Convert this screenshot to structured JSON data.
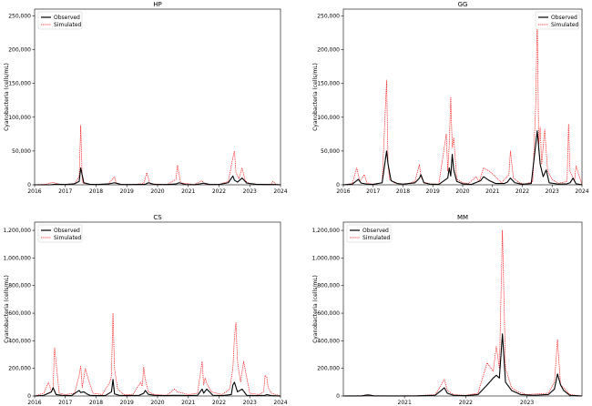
{
  "chart_data": [
    {
      "type": "line",
      "title": "HP",
      "ylabel": "Cyanobacteria (cells/mL)",
      "xlabel": "",
      "xlim": [
        2016.0,
        2024.0
      ],
      "ylim": [
        0,
        260000
      ],
      "xticks": [
        2016,
        2017,
        2018,
        2019,
        2020,
        2021,
        2022,
        2023,
        2024
      ],
      "xtick_labels": [
        "2016",
        "2017",
        "2018",
        "2019",
        "2020",
        "2021",
        "2022",
        "2023",
        "2024"
      ],
      "yticks": [
        0,
        50000,
        100000,
        150000,
        200000,
        250000
      ],
      "ytick_labels": [
        "0",
        "50,000",
        "100,000",
        "150,000",
        "200,000",
        "250,000"
      ],
      "legend": "top-left",
      "series": [
        {
          "name": "Observed",
          "color": "#000000",
          "style": "solid",
          "x": [
            2016.0,
            2016.5,
            2016.7,
            2017.0,
            2017.3,
            2017.45,
            2017.5,
            2017.6,
            2017.8,
            2018.0,
            2018.4,
            2018.6,
            2018.8,
            2019.2,
            2019.6,
            2019.7,
            2019.9,
            2020.3,
            2020.6,
            2020.7,
            2020.9,
            2021.2,
            2021.4,
            2021.5,
            2021.7,
            2022.0,
            2022.3,
            2022.45,
            2022.5,
            2022.6,
            2022.75,
            2022.9,
            2023.2,
            2023.6,
            2023.8,
            2024.0
          ],
          "y": [
            0,
            0,
            1000,
            500,
            1500,
            5000,
            25000,
            3000,
            800,
            400,
            1200,
            3000,
            600,
            400,
            800,
            3000,
            500,
            400,
            1200,
            3000,
            500,
            300,
            1500,
            2500,
            400,
            500,
            3000,
            13000,
            7000,
            4000,
            10000,
            2500,
            800,
            400,
            500,
            0
          ]
        },
        {
          "name": "Simulated",
          "color": "#ff0000",
          "style": "dotted",
          "x": [
            2016.0,
            2016.4,
            2016.6,
            2016.7,
            2016.8,
            2017.0,
            2017.3,
            2017.45,
            2017.5,
            2017.55,
            2017.6,
            2017.8,
            2018.0,
            2018.4,
            2018.6,
            2018.65,
            2018.8,
            2019.2,
            2019.55,
            2019.65,
            2019.75,
            2020.3,
            2020.6,
            2020.65,
            2020.75,
            2021.2,
            2021.45,
            2021.5,
            2021.6,
            2022.0,
            2022.3,
            2022.45,
            2022.5,
            2022.55,
            2022.65,
            2022.75,
            2022.85,
            2023.0,
            2023.3,
            2023.7,
            2023.75,
            2023.85,
            2024.0
          ],
          "y": [
            0,
            1000,
            4000,
            2000,
            800,
            500,
            2000,
            12000,
            88000,
            5000,
            2000,
            800,
            400,
            1500,
            12000,
            3000,
            600,
            400,
            2000,
            18000,
            1500,
            400,
            8000,
            29000,
            3000,
            300,
            6000,
            2000,
            500,
            500,
            5000,
            40000,
            50000,
            18000,
            9000,
            25000,
            6000,
            1500,
            800,
            1000,
            5000,
            1000,
            0
          ]
        }
      ]
    },
    {
      "type": "line",
      "title": "GG",
      "ylabel": "Cyanobacteria (cells/mL)",
      "xlabel": "",
      "xlim": [
        2016.0,
        2024.0
      ],
      "ylim": [
        0,
        260000
      ],
      "xticks": [
        2016,
        2017,
        2018,
        2019,
        2020,
        2021,
        2022,
        2023,
        2024
      ],
      "xtick_labels": [
        "2016",
        "2017",
        "2018",
        "2019",
        "2020",
        "2021",
        "2022",
        "2023",
        "2024"
      ],
      "yticks": [
        0,
        50000,
        100000,
        150000,
        200000,
        250000
      ],
      "ytick_labels": [
        "0",
        "50,000",
        "100,000",
        "150,000",
        "200,000",
        "250,000"
      ],
      "legend": "top-right",
      "series": [
        {
          "name": "Observed",
          "color": "#000000",
          "style": "solid",
          "x": [
            2016.0,
            2016.3,
            2016.5,
            2016.6,
            2016.8,
            2017.0,
            2017.3,
            2017.45,
            2017.5,
            2017.6,
            2017.8,
            2018.0,
            2018.4,
            2018.55,
            2018.6,
            2018.7,
            2018.9,
            2019.2,
            2019.5,
            2019.55,
            2019.6,
            2019.65,
            2019.7,
            2019.8,
            2020.0,
            2020.3,
            2020.6,
            2020.7,
            2020.9,
            2021.1,
            2021.4,
            2021.5,
            2021.6,
            2021.75,
            2022.0,
            2022.3,
            2022.45,
            2022.5,
            2022.6,
            2022.7,
            2022.8,
            2022.9,
            2023.2,
            2023.5,
            2023.6,
            2023.7,
            2023.8,
            2024.0
          ],
          "y": [
            0,
            1000,
            8000,
            2500,
            1000,
            600,
            3000,
            50000,
            30000,
            6000,
            2000,
            1000,
            3000,
            10000,
            15000,
            3000,
            1000,
            600,
            10000,
            25000,
            13000,
            45000,
            22000,
            5000,
            1500,
            600,
            6000,
            12000,
            6000,
            2000,
            2000,
            4000,
            10000,
            3000,
            800,
            2000,
            60000,
            80000,
            30000,
            12000,
            22000,
            3000,
            1000,
            1500,
            3000,
            10000,
            1500,
            0
          ]
        },
        {
          "name": "Simulated",
          "color": "#ff0000",
          "style": "dotted",
          "x": [
            2016.0,
            2016.3,
            2016.45,
            2016.55,
            2016.7,
            2016.8,
            2017.0,
            2017.3,
            2017.45,
            2017.5,
            2017.55,
            2017.7,
            2017.9,
            2018.1,
            2018.4,
            2018.55,
            2018.6,
            2018.7,
            2018.9,
            2019.2,
            2019.45,
            2019.5,
            2019.55,
            2019.6,
            2019.65,
            2019.7,
            2019.8,
            2020.0,
            2020.2,
            2020.45,
            2020.55,
            2020.7,
            2020.9,
            2021.1,
            2021.3,
            2021.55,
            2021.6,
            2021.7,
            2021.9,
            2022.1,
            2022.35,
            2022.45,
            2022.5,
            2022.55,
            2022.6,
            2022.65,
            2022.75,
            2022.85,
            2023.0,
            2023.2,
            2023.5,
            2023.55,
            2023.6,
            2023.75,
            2023.8,
            2024.0
          ],
          "y": [
            0,
            2000,
            25000,
            5000,
            15000,
            2000,
            1000,
            3000,
            155000,
            30000,
            8000,
            3000,
            1000,
            800,
            5000,
            30000,
            12000,
            4000,
            1500,
            1000,
            75000,
            20000,
            60000,
            130000,
            55000,
            70000,
            8000,
            3000,
            2000,
            12000,
            4000,
            25000,
            20000,
            12000,
            3000,
            15000,
            50000,
            10000,
            3000,
            1000,
            5000,
            120000,
            250000,
            60000,
            85000,
            30000,
            82000,
            20000,
            8000,
            2000,
            5000,
            90000,
            20000,
            5000,
            28000,
            0
          ]
        }
      ]
    },
    {
      "type": "line",
      "title": "CS",
      "ylabel": "Cyanobacteria (cells/mL)",
      "xlabel": "",
      "xlim": [
        2016.0,
        2024.0
      ],
      "ylim": [
        0,
        1260000
      ],
      "xticks": [
        2016,
        2017,
        2018,
        2019,
        2020,
        2021,
        2022,
        2023,
        2024
      ],
      "xtick_labels": [
        "2016",
        "2017",
        "2018",
        "2019",
        "2020",
        "2021",
        "2022",
        "2023",
        "2024"
      ],
      "yticks": [
        0,
        200000,
        400000,
        600000,
        800000,
        1000000,
        1200000
      ],
      "ytick_labels": [
        "0",
        "200,000",
        "400,000",
        "600,000",
        "800,000",
        "1,000,000",
        "1,200,000"
      ],
      "legend": "top-left",
      "series": [
        {
          "name": "Observed",
          "color": "#000000",
          "style": "solid",
          "x": [
            2016.0,
            2016.3,
            2016.45,
            2016.55,
            2016.6,
            2016.7,
            2016.9,
            2017.2,
            2017.45,
            2017.5,
            2017.6,
            2017.7,
            2017.8,
            2018.0,
            2018.3,
            2018.5,
            2018.55,
            2018.6,
            2018.75,
            2019.0,
            2019.4,
            2019.55,
            2019.6,
            2019.7,
            2019.9,
            2020.2,
            2020.5,
            2020.7,
            2021.0,
            2021.3,
            2021.45,
            2021.5,
            2021.6,
            2021.8,
            2022.1,
            2022.4,
            2022.45,
            2022.5,
            2022.6,
            2022.75,
            2022.9,
            2023.2,
            2023.5,
            2023.55,
            2023.7,
            2024.0
          ],
          "y": [
            0,
            5000,
            20000,
            30000,
            60000,
            10000,
            5000,
            3000,
            40000,
            25000,
            30000,
            15000,
            5000,
            3000,
            3000,
            30000,
            120000,
            15000,
            5000,
            3000,
            5000,
            20000,
            40000,
            12000,
            5000,
            3000,
            5000,
            5000,
            3000,
            5000,
            50000,
            20000,
            50000,
            5000,
            3000,
            10000,
            80000,
            100000,
            30000,
            50000,
            5000,
            3000,
            5000,
            10000,
            3000,
            0
          ]
        },
        {
          "name": "Simulated",
          "color": "#ff0000",
          "style": "dotted",
          "x": [
            2016.0,
            2016.3,
            2016.45,
            2016.55,
            2016.6,
            2016.65,
            2016.8,
            2017.0,
            2017.3,
            2017.45,
            2017.5,
            2017.55,
            2017.6,
            2017.65,
            2017.75,
            2017.9,
            2018.2,
            2018.45,
            2018.5,
            2018.55,
            2018.6,
            2018.7,
            2018.9,
            2019.2,
            2019.45,
            2019.5,
            2019.55,
            2019.6,
            2019.7,
            2019.9,
            2020.3,
            2020.55,
            2020.65,
            2021.0,
            2021.3,
            2021.45,
            2021.5,
            2021.55,
            2021.6,
            2021.75,
            2022.1,
            2022.35,
            2022.45,
            2022.5,
            2022.55,
            2022.6,
            2022.7,
            2022.8,
            2023.0,
            2023.3,
            2023.45,
            2023.5,
            2023.55,
            2023.6,
            2023.7,
            2024.0
          ],
          "y": [
            0,
            20000,
            100000,
            30000,
            60000,
            350000,
            20000,
            10000,
            20000,
            150000,
            220000,
            60000,
            130000,
            200000,
            120000,
            20000,
            10000,
            100000,
            150000,
            600000,
            200000,
            50000,
            10000,
            10000,
            100000,
            70000,
            210000,
            120000,
            30000,
            10000,
            5000,
            50000,
            30000,
            10000,
            20000,
            250000,
            80000,
            130000,
            90000,
            30000,
            10000,
            50000,
            200000,
            420000,
            530000,
            250000,
            100000,
            250000,
            20000,
            10000,
            30000,
            150000,
            140000,
            60000,
            20000,
            0
          ]
        }
      ]
    },
    {
      "type": "line",
      "title": "MM",
      "ylabel": "Cyanobacteria (cells/mL)",
      "xlabel": "",
      "xlim": [
        2020.0,
        2023.9
      ],
      "ylim": [
        0,
        1260000
      ],
      "xticks": [
        2021,
        2022,
        2023
      ],
      "xtick_labels": [
        "2021",
        "2022",
        "2023"
      ],
      "yticks": [
        0,
        200000,
        400000,
        600000,
        800000,
        1000000,
        1200000
      ],
      "ytick_labels": [
        "0",
        "200,000",
        "400,000",
        "600,000",
        "800,000",
        "1,000,000",
        "1,200,000"
      ],
      "legend": "top-left",
      "series": [
        {
          "name": "Observed",
          "color": "#000000",
          "style": "solid",
          "x": [
            2020.0,
            2020.3,
            2020.4,
            2020.5,
            2020.8,
            2021.2,
            2021.5,
            2021.6,
            2021.65,
            2021.7,
            2021.8,
            2022.0,
            2022.2,
            2022.35,
            2022.45,
            2022.5,
            2022.55,
            2022.6,
            2022.65,
            2022.75,
            2022.9,
            2023.1,
            2023.35,
            2023.45,
            2023.5,
            2023.55,
            2023.6,
            2023.7,
            2023.9
          ],
          "y": [
            0,
            1000,
            8000,
            1000,
            500,
            1000,
            5000,
            40000,
            60000,
            20000,
            5000,
            2000,
            10000,
            80000,
            130000,
            150000,
            130000,
            450000,
            100000,
            40000,
            10000,
            5000,
            10000,
            50000,
            160000,
            80000,
            40000,
            5000,
            0
          ]
        },
        {
          "name": "Simulated",
          "color": "#ff0000",
          "style": "dotted",
          "x": [
            2020.0,
            2020.3,
            2020.4,
            2020.5,
            2020.8,
            2021.2,
            2021.5,
            2021.6,
            2021.65,
            2021.7,
            2021.8,
            2022.0,
            2022.2,
            2022.35,
            2022.45,
            2022.5,
            2022.55,
            2022.6,
            2022.65,
            2022.75,
            2022.85,
            2023.0,
            2023.35,
            2023.45,
            2023.5,
            2023.55,
            2023.6,
            2023.7,
            2023.9
          ],
          "y": [
            0,
            2000,
            10000,
            2000,
            1000,
            2000,
            10000,
            80000,
            120000,
            40000,
            10000,
            5000,
            20000,
            240000,
            180000,
            360000,
            200000,
            1200000,
            200000,
            60000,
            30000,
            10000,
            20000,
            100000,
            410000,
            80000,
            60000,
            10000,
            0
          ]
        }
      ]
    }
  ]
}
